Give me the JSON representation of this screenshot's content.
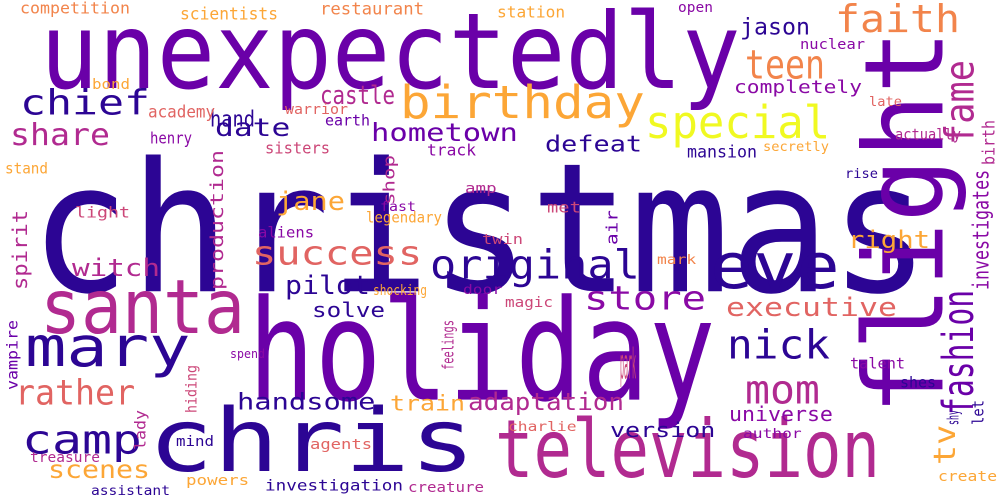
{
  "wordcloud": {
    "colors": {
      "indigo": "#2c0594",
      "purple": "#6a00a8",
      "violet": "#8a09a5",
      "magenta": "#b12a90",
      "pink": "#cc4778",
      "coral": "#e16462",
      "orange": "#f2844b",
      "amber": "#fca636",
      "yellow": "#f0f921"
    },
    "words": [
      "christmas",
      "holiday",
      "unexpectedly",
      "flight",
      "chris",
      "television",
      "santa",
      "mary",
      "eve",
      "birthday",
      "special",
      "faith",
      "teen",
      "original",
      "camp",
      "mom",
      "chief",
      "nick",
      "success",
      "store",
      "rather",
      "executive",
      "fashion",
      "share",
      "date",
      "adaptation",
      "tv",
      "fame",
      "hometown",
      "handsome",
      "train",
      "jane",
      "pilot",
      "witch",
      "scenes",
      "castle",
      "hand",
      "version",
      "right",
      "defeat",
      "universe",
      "spirit",
      "jason",
      "solve",
      "production",
      "completely",
      "investigates",
      "birth",
      "competition",
      "scientists",
      "restaurant",
      "station",
      "open",
      "nuclear",
      "bond",
      "academy",
      "henry",
      "warrior",
      "earth",
      "late",
      "actually",
      "sisters",
      "track",
      "mansion",
      "secretly",
      "stand",
      "shop",
      "amp",
      "rise",
      "light",
      "fast",
      "legendary",
      "met",
      "air",
      "aliens",
      "twin",
      "mark",
      "door",
      "magic",
      "shocking",
      "feelings",
      "vampire",
      "spend",
      "park",
      "talent",
      "shes",
      "hiding",
      "lady",
      "charlie",
      "author",
      "let",
      "shy",
      "mind",
      "agents",
      "treasure",
      "powers",
      "investigation",
      "creature",
      "assistant",
      "create"
    ]
  }
}
